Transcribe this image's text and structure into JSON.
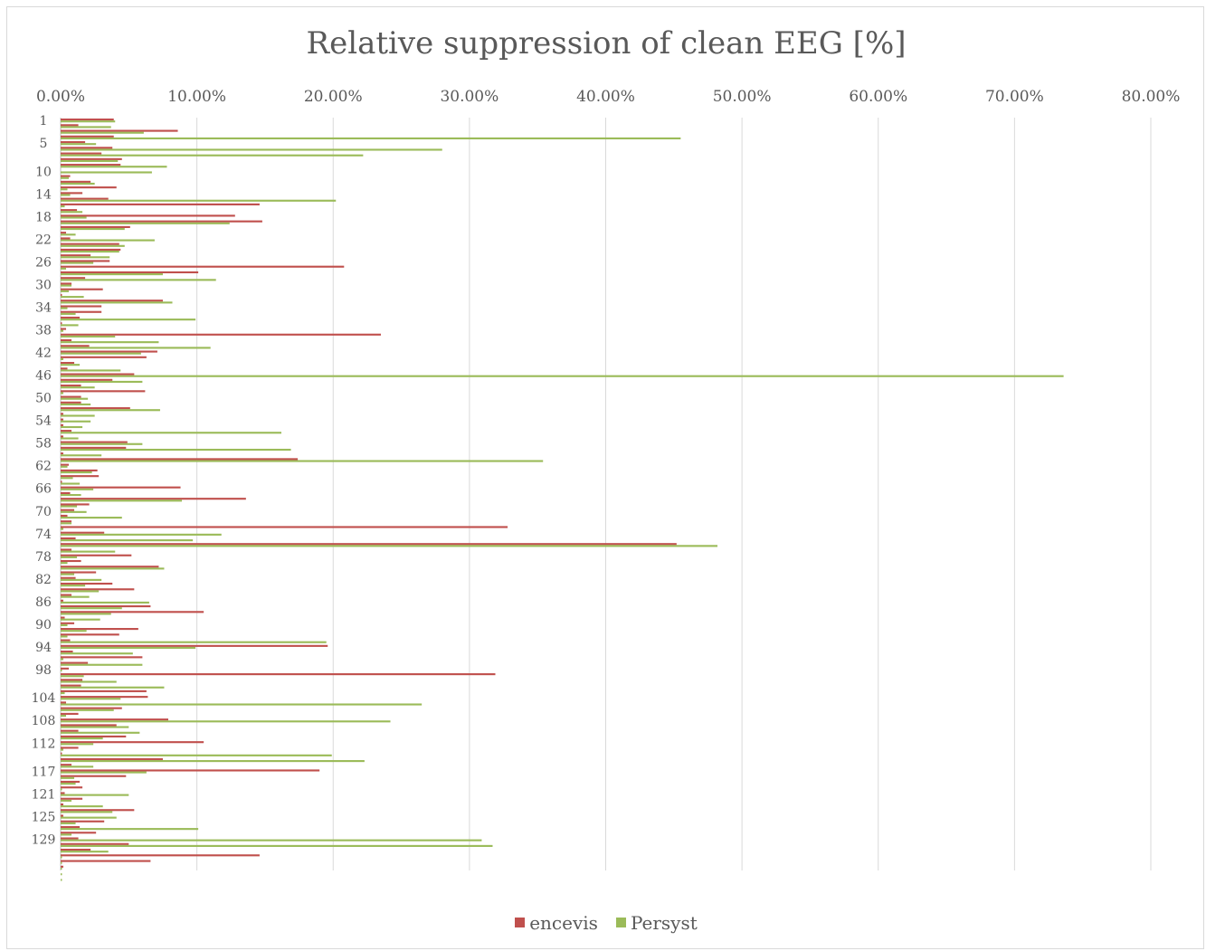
{
  "chart_data": {
    "type": "bar",
    "orientation": "horizontal",
    "title": "Relative suppression of clean EEG [%]",
    "xlabel": "",
    "ylabel": "",
    "xlim": [
      0,
      0.8
    ],
    "x_ticks": [
      "0.00%",
      "10.00%",
      "20.00%",
      "30.00%",
      "40.00%",
      "50.00%",
      "60.00%",
      "70.00%",
      "80.00%"
    ],
    "category_tick_labels": [
      "1",
      "5",
      "10",
      "14",
      "18",
      "22",
      "26",
      "30",
      "34",
      "38",
      "42",
      "46",
      "50",
      "54",
      "58",
      "62",
      "66",
      "70",
      "74",
      "78",
      "82",
      "86",
      "90",
      "94",
      "98",
      "104",
      "108",
      "112",
      "117",
      "121",
      "125",
      "129"
    ],
    "grid": true,
    "legend_position": "bottom",
    "colors": {
      "encevis": "#c0504d",
      "Persyst": "#9bbb59"
    },
    "series": [
      {
        "name": "encevis",
        "values": [
          0.039,
          0.013,
          0.086,
          0.039,
          0.018,
          0.038,
          0.03,
          0.045,
          0.044,
          0.0,
          0.007,
          0.022,
          0.041,
          0.016,
          0.035,
          0.146,
          0.012,
          0.128,
          0.148,
          0.051,
          0.004,
          0.007,
          0.043,
          0.044,
          0.022,
          0.036,
          0.208,
          0.101,
          0.018,
          0.008,
          0.031,
          0.001,
          0.075,
          0.03,
          0.03,
          0.014,
          0.001,
          0.004,
          0.235,
          0.008,
          0.021,
          0.071,
          0.063,
          0.01,
          0.005,
          0.054,
          0.038,
          0.015,
          0.062,
          0.015,
          0.015,
          0.051,
          0.002,
          0.002,
          0.002,
          0.008,
          0.002,
          0.049,
          0.048,
          0.002,
          0.174,
          0.006,
          0.027,
          0.028,
          0.001,
          0.088,
          0.007,
          0.136,
          0.021,
          0.01,
          0.005,
          0.008,
          0.328,
          0.032,
          0.011,
          0.452,
          0.008,
          0.052,
          0.015,
          0.072,
          0.026,
          0.011,
          0.038,
          0.054,
          0.008,
          0.002,
          0.066,
          0.105,
          0.003,
          0.01,
          0.057,
          0.043,
          0.007,
          0.196,
          0.009,
          0.06,
          0.02,
          0.006,
          0.319,
          0.016,
          0.015,
          0.063,
          0.064,
          0.004,
          0.045,
          0.013,
          0.079,
          0.041,
          0.013,
          0.048,
          0.105,
          0.013,
          0.001,
          0.075,
          0.008,
          0.19,
          0.048,
          0.014,
          0.016,
          0.003,
          0.016,
          0.002,
          0.054,
          0.002,
          0.032,
          0.014,
          0.026,
          0.013,
          0.05,
          0.022,
          0.146,
          0.066,
          0.002
        ],
        "hidden_note": ""
      },
      {
        "name": "Persyst",
        "values": [
          0.04,
          0.037,
          0.061,
          0.455,
          0.026,
          0.28,
          0.222,
          0.042,
          0.078,
          0.067,
          0.006,
          0.025,
          0.005,
          0.007,
          0.202,
          0.003,
          0.016,
          0.019,
          0.124,
          0.047,
          0.011,
          0.069,
          0.047,
          0.043,
          0.036,
          0.024,
          0.004,
          0.075,
          0.114,
          0.008,
          0.006,
          0.017,
          0.082,
          0.005,
          0.011,
          0.099,
          0.013,
          0.002,
          0.04,
          0.072,
          0.11,
          0.059,
          0.002,
          0.014,
          0.044,
          0.736,
          0.06,
          0.025,
          0.002,
          0.02,
          0.022,
          0.073,
          0.025,
          0.022,
          0.016,
          0.162,
          0.013,
          0.06,
          0.169,
          0.03,
          0.354,
          0.005,
          0.023,
          0.009,
          0.014,
          0.024,
          0.015,
          0.089,
          0.012,
          0.019,
          0.045,
          0.008,
          0.002,
          0.118,
          0.097,
          0.482,
          0.04,
          0.012,
          0.005,
          0.076,
          0.01,
          0.03,
          0.018,
          0.028,
          0.021,
          0.065,
          0.045,
          0.037,
          0.029,
          0.005,
          0.019,
          0.005,
          0.195,
          0.099,
          0.053,
          0.002,
          0.06,
          0.001,
          0.017,
          0.041,
          0.076,
          0.003,
          0.044,
          0.265,
          0.039,
          0.004,
          0.242,
          0.05,
          0.058,
          0.031,
          0.024,
          0.002,
          0.199,
          0.223,
          0.024,
          0.063,
          0.01,
          0.011,
          0.001,
          0.05,
          0.008,
          0.031,
          0.038,
          0.041,
          0.011,
          0.101,
          0.008,
          0.309,
          0.317,
          0.035,
          0.001,
          0.001,
          0.001,
          0.001,
          0.001
        ]
      }
    ]
  }
}
